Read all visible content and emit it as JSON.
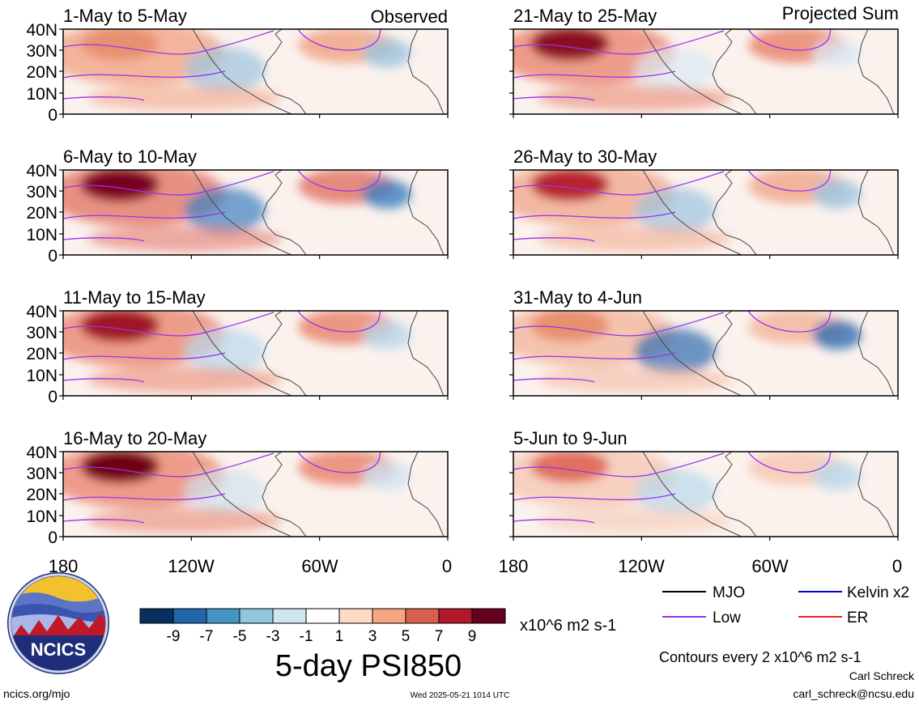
{
  "figure": {
    "title": "5-day PSI850",
    "observed_label": "Observed",
    "projected_label": "Projected Sum",
    "units": "x10^6 m2 s-1",
    "contour_note": "Contours every 2 x10^6 m2 s-1",
    "author": "Carl Schreck",
    "email": "carl_schreck@ncsu.edu",
    "website": "ncics.org/mjo",
    "timestamp": "Wed 2025-05-21 1014 UTC",
    "logo_text": "NCICS"
  },
  "panels": [
    {
      "label": "1-May to 5-May",
      "period": "observed",
      "colors": {
        "warm": "#f0a080",
        "cold": "#9cc4e0",
        "core": "#e89070"
      }
    },
    {
      "label": "6-May to 10-May",
      "period": "observed",
      "colors": {
        "warm": "#e07060",
        "cold": "#3a80c0",
        "core": "#7a0020"
      }
    },
    {
      "label": "11-May to 15-May",
      "period": "observed",
      "colors": {
        "warm": "#e88068",
        "cold": "#b8d8ec",
        "core": "#a01828"
      }
    },
    {
      "label": "16-May to 20-May",
      "period": "observed",
      "colors": {
        "warm": "#e88068",
        "cold": "#cfe2f0",
        "core": "#700018"
      }
    },
    {
      "label": "21-May to 25-May",
      "period": "projected",
      "colors": {
        "warm": "#e88068",
        "cold": "#dbe9f4",
        "core": "#8a0c20"
      }
    },
    {
      "label": "26-May to 30-May",
      "period": "projected",
      "colors": {
        "warm": "#f0a588",
        "cold": "#9cc4e0",
        "core": "#b82030"
      }
    },
    {
      "label": "31-May to 4-Jun",
      "period": "projected",
      "colors": {
        "warm": "#f2b49a",
        "cold": "#2e6cb0",
        "core": "#e89070"
      }
    },
    {
      "label": "5-Jun to 9-Jun",
      "period": "projected",
      "colors": {
        "warm": "#f6c6b0",
        "cold": "#b8d8ec",
        "core": "#e07060"
      }
    }
  ],
  "axes": {
    "lat_ticks": [
      "40N",
      "30N",
      "20N",
      "10N",
      "0"
    ],
    "lon_ticks": [
      "180",
      "120W",
      "60W",
      "0"
    ]
  },
  "colorbar": {
    "labels": [
      "-9",
      "-7",
      "-5",
      "-3",
      "-1",
      "1",
      "3",
      "5",
      "7",
      "9"
    ],
    "colors": [
      "#08305e",
      "#2166ac",
      "#4393c3",
      "#92c5de",
      "#d1e5f0",
      "#ffffff",
      "#fddbc7",
      "#f4a582",
      "#d6604d",
      "#b2182b",
      "#67001f"
    ]
  },
  "legend": {
    "items": [
      {
        "label": "MJO",
        "color": "#000000"
      },
      {
        "label": "Kelvin x2",
        "color": "#0000cc"
      },
      {
        "label": "Low",
        "color": "#9933ee"
      },
      {
        "label": "ER",
        "color": "#ee2222"
      }
    ]
  }
}
